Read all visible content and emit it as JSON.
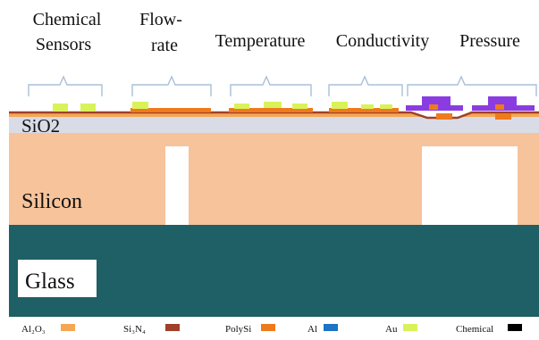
{
  "sensors": {
    "chemical_1": "Chemical",
    "chemical_2": "Sensors",
    "flow_1": "Flow-",
    "flow_2": "rate",
    "temperature": "Temperature",
    "conductivity": "Conductivity",
    "pressure": "Pressure"
  },
  "layers": {
    "sio2": "SiO2",
    "silicon": "Silicon",
    "glass": "Glass"
  },
  "legend": {
    "al2o3": {
      "label": "Al₂O₃",
      "color": "#f5a754"
    },
    "si3n4": {
      "label": "Si₃N₄",
      "color": "#a0402a"
    },
    "polysi": {
      "label": "PolySi",
      "color": "#ef7a1c"
    },
    "al": {
      "label": "Al",
      "color": "#1d73c4"
    },
    "au": {
      "label": "Au",
      "color": "#d9f25a"
    },
    "chemical": {
      "label": "Chemical",
      "color": "#000000"
    }
  },
  "colors": {
    "silicon": "#f7c39a",
    "glass": "#1f5f66",
    "sio2": "#d9dce6",
    "pressure_metal": "#8a3ce0",
    "brace": "#a9c0d8"
  }
}
